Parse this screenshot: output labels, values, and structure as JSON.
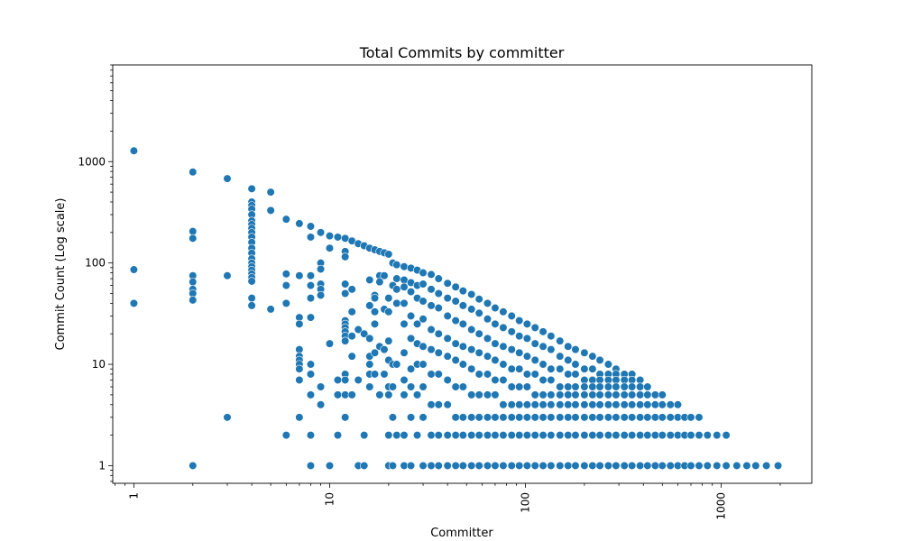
{
  "chart_data": {
    "type": "scatter",
    "title": "Total Commits by committer",
    "xlabel": "Committer",
    "ylabel": "Commit Count (Log scale)",
    "xscale": "log",
    "yscale": "log",
    "xlim": [
      0.78,
      2900
    ],
    "ylim": [
      0.67,
      9000
    ],
    "xticks": [
      1,
      10,
      100,
      1000
    ],
    "xtick_labels": [
      "1",
      "10",
      "100",
      "1000"
    ],
    "yticks": [
      1,
      10,
      100,
      1000
    ],
    "ytick_labels": [
      "1",
      "10",
      "100",
      "1000"
    ],
    "grid": false,
    "marker_color": "#1f77b4",
    "points": [
      [
        1,
        1280
      ],
      [
        1,
        86
      ],
      [
        1,
        40
      ],
      [
        2,
        790
      ],
      [
        2,
        205
      ],
      [
        2,
        175
      ],
      [
        2,
        75
      ],
      [
        2,
        65
      ],
      [
        2,
        55
      ],
      [
        2,
        50
      ],
      [
        2,
        43
      ],
      [
        2,
        1
      ],
      [
        3,
        680
      ],
      [
        3,
        75
      ],
      [
        3,
        3
      ],
      [
        4,
        540
      ],
      [
        4,
        400
      ],
      [
        4,
        370
      ],
      [
        4,
        340
      ],
      [
        4,
        300
      ],
      [
        4,
        260
      ],
      [
        4,
        240
      ],
      [
        4,
        220
      ],
      [
        4,
        200
      ],
      [
        4,
        180
      ],
      [
        4,
        160
      ],
      [
        4,
        140
      ],
      [
        4,
        125
      ],
      [
        4,
        110
      ],
      [
        4,
        100
      ],
      [
        4,
        92
      ],
      [
        4,
        85
      ],
      [
        4,
        78
      ],
      [
        4,
        72
      ],
      [
        4,
        66
      ],
      [
        4,
        45
      ],
      [
        4,
        38
      ],
      [
        5,
        500
      ],
      [
        5,
        330
      ],
      [
        5,
        35
      ],
      [
        6,
        270
      ],
      [
        6,
        78
      ],
      [
        6,
        60
      ],
      [
        6,
        40
      ],
      [
        6,
        2
      ],
      [
        7,
        245
      ],
      [
        7,
        75
      ],
      [
        7,
        29
      ],
      [
        7,
        25
      ],
      [
        7,
        14
      ],
      [
        7,
        12
      ],
      [
        7,
        11
      ],
      [
        7,
        10
      ],
      [
        7,
        9
      ],
      [
        7,
        7
      ],
      [
        7,
        3
      ],
      [
        8,
        230
      ],
      [
        8,
        180
      ],
      [
        8,
        75
      ],
      [
        8,
        60
      ],
      [
        8,
        45
      ],
      [
        8,
        29
      ],
      [
        8,
        10
      ],
      [
        8,
        8
      ],
      [
        8,
        5
      ],
      [
        8,
        2
      ],
      [
        8,
        1
      ],
      [
        9,
        200
      ],
      [
        9,
        100
      ],
      [
        9,
        87
      ],
      [
        9,
        62
      ],
      [
        9,
        55
      ],
      [
        9,
        48
      ],
      [
        9,
        6
      ],
      [
        9,
        4
      ],
      [
        10,
        185
      ],
      [
        10,
        140
      ],
      [
        10,
        16
      ],
      [
        10,
        1
      ],
      [
        11,
        180
      ],
      [
        11,
        7
      ],
      [
        11,
        5
      ],
      [
        11,
        2
      ],
      [
        12,
        175
      ],
      [
        12,
        130
      ],
      [
        12,
        115
      ],
      [
        12,
        62
      ],
      [
        12,
        50
      ],
      [
        12,
        27
      ],
      [
        12,
        25
      ],
      [
        12,
        23
      ],
      [
        12,
        21
      ],
      [
        12,
        19
      ],
      [
        12,
        17
      ],
      [
        12,
        8
      ],
      [
        12,
        7
      ],
      [
        12,
        5
      ],
      [
        12,
        3
      ],
      [
        13,
        165
      ],
      [
        13,
        55
      ],
      [
        13,
        33
      ],
      [
        13,
        19
      ],
      [
        13,
        12
      ],
      [
        13,
        5
      ],
      [
        14,
        155
      ],
      [
        14,
        22
      ],
      [
        14,
        7
      ],
      [
        14,
        1
      ],
      [
        15,
        148
      ],
      [
        15,
        20
      ],
      [
        15,
        2
      ],
      [
        15,
        1
      ],
      [
        16,
        140
      ],
      [
        16,
        68
      ],
      [
        16,
        38
      ],
      [
        16,
        18
      ],
      [
        16,
        12
      ],
      [
        16,
        10
      ],
      [
        16,
        8
      ],
      [
        16,
        6
      ],
      [
        17,
        135
      ],
      [
        17,
        48
      ],
      [
        17,
        45
      ],
      [
        17,
        33
      ],
      [
        17,
        25
      ],
      [
        17,
        13
      ],
      [
        17,
        8
      ],
      [
        18,
        130
      ],
      [
        18,
        75
      ],
      [
        18,
        65
      ],
      [
        18,
        15
      ],
      [
        18,
        5
      ],
      [
        19,
        126
      ],
      [
        19,
        75
      ],
      [
        19,
        35
      ],
      [
        19,
        14
      ],
      [
        19,
        8
      ],
      [
        20,
        122
      ],
      [
        20,
        45
      ],
      [
        20,
        33
      ],
      [
        20,
        17
      ],
      [
        20,
        11
      ],
      [
        20,
        6
      ],
      [
        20,
        5
      ],
      [
        20,
        2
      ],
      [
        20,
        1
      ],
      [
        21,
        100
      ],
      [
        21,
        60
      ],
      [
        21,
        10
      ],
      [
        21,
        6
      ],
      [
        21,
        3
      ],
      [
        21,
        1
      ],
      [
        22,
        96
      ],
      [
        22,
        70
      ],
      [
        22,
        55
      ],
      [
        22,
        40
      ],
      [
        22,
        10
      ],
      [
        22,
        2
      ],
      [
        24,
        92
      ],
      [
        24,
        68
      ],
      [
        24,
        58
      ],
      [
        24,
        40
      ],
      [
        24,
        25
      ],
      [
        24,
        13
      ],
      [
        24,
        7
      ],
      [
        24,
        5
      ],
      [
        24,
        2
      ],
      [
        24,
        1
      ],
      [
        26,
        89
      ],
      [
        26,
        64
      ],
      [
        26,
        52
      ],
      [
        26,
        30
      ],
      [
        26,
        18
      ],
      [
        26,
        9
      ],
      [
        26,
        6
      ],
      [
        26,
        3
      ],
      [
        26,
        1
      ],
      [
        28,
        85
      ],
      [
        28,
        60
      ],
      [
        28,
        45
      ],
      [
        28,
        25
      ],
      [
        28,
        16
      ],
      [
        28,
        10
      ],
      [
        28,
        5
      ],
      [
        28,
        2
      ],
      [
        30,
        80
      ],
      [
        30,
        62
      ],
      [
        30,
        42
      ],
      [
        30,
        28
      ],
      [
        30,
        15
      ],
      [
        30,
        10
      ],
      [
        30,
        6
      ],
      [
        30,
        3
      ],
      [
        30,
        1
      ],
      [
        33,
        77
      ],
      [
        33,
        55
      ],
      [
        33,
        38
      ],
      [
        33,
        22
      ],
      [
        33,
        14
      ],
      [
        33,
        8
      ],
      [
        33,
        4
      ],
      [
        33,
        2
      ],
      [
        33,
        1
      ],
      [
        36,
        70
      ],
      [
        36,
        50
      ],
      [
        36,
        36
      ],
      [
        36,
        20
      ],
      [
        36,
        13
      ],
      [
        36,
        8
      ],
      [
        36,
        4
      ],
      [
        36,
        2
      ],
      [
        36,
        1
      ],
      [
        40,
        63
      ],
      [
        40,
        45
      ],
      [
        40,
        30
      ],
      [
        40,
        18
      ],
      [
        40,
        12
      ],
      [
        40,
        7
      ],
      [
        40,
        4
      ],
      [
        40,
        2
      ],
      [
        40,
        1
      ],
      [
        44,
        58
      ],
      [
        44,
        42
      ],
      [
        44,
        27
      ],
      [
        44,
        16
      ],
      [
        44,
        11
      ],
      [
        44,
        6
      ],
      [
        44,
        3
      ],
      [
        44,
        2
      ],
      [
        44,
        1
      ],
      [
        48,
        53
      ],
      [
        48,
        38
      ],
      [
        48,
        25
      ],
      [
        48,
        15
      ],
      [
        48,
        10
      ],
      [
        48,
        6
      ],
      [
        48,
        3
      ],
      [
        48,
        2
      ],
      [
        48,
        1
      ],
      [
        53,
        49
      ],
      [
        53,
        35
      ],
      [
        53,
        22
      ],
      [
        53,
        14
      ],
      [
        53,
        9
      ],
      [
        53,
        5
      ],
      [
        53,
        3
      ],
      [
        53,
        2
      ],
      [
        53,
        1
      ],
      [
        58,
        44
      ],
      [
        58,
        32
      ],
      [
        58,
        20
      ],
      [
        58,
        13
      ],
      [
        58,
        8
      ],
      [
        58,
        5
      ],
      [
        58,
        3
      ],
      [
        58,
        2
      ],
      [
        58,
        1
      ],
      [
        64,
        40
      ],
      [
        64,
        28
      ],
      [
        64,
        18
      ],
      [
        64,
        12
      ],
      [
        64,
        8
      ],
      [
        64,
        5
      ],
      [
        64,
        3
      ],
      [
        64,
        2
      ],
      [
        64,
        1
      ],
      [
        70,
        36
      ],
      [
        70,
        25
      ],
      [
        70,
        16
      ],
      [
        70,
        11
      ],
      [
        70,
        7
      ],
      [
        70,
        5
      ],
      [
        70,
        3
      ],
      [
        70,
        2
      ],
      [
        70,
        1
      ],
      [
        77,
        33
      ],
      [
        77,
        23
      ],
      [
        77,
        15
      ],
      [
        77,
        10
      ],
      [
        77,
        7
      ],
      [
        77,
        4
      ],
      [
        77,
        3
      ],
      [
        77,
        2
      ],
      [
        77,
        1
      ],
      [
        85,
        30
      ],
      [
        85,
        21
      ],
      [
        85,
        14
      ],
      [
        85,
        9
      ],
      [
        85,
        6
      ],
      [
        85,
        4
      ],
      [
        85,
        3
      ],
      [
        85,
        2
      ],
      [
        85,
        1
      ],
      [
        93,
        27
      ],
      [
        93,
        19
      ],
      [
        93,
        13
      ],
      [
        93,
        9
      ],
      [
        93,
        6
      ],
      [
        93,
        4
      ],
      [
        93,
        3
      ],
      [
        93,
        2
      ],
      [
        93,
        1
      ],
      [
        102,
        25
      ],
      [
        102,
        18
      ],
      [
        102,
        12
      ],
      [
        102,
        8
      ],
      [
        102,
        6
      ],
      [
        102,
        4
      ],
      [
        102,
        3
      ],
      [
        102,
        2
      ],
      [
        102,
        1
      ],
      [
        112,
        23
      ],
      [
        112,
        16
      ],
      [
        112,
        11
      ],
      [
        112,
        8
      ],
      [
        112,
        5
      ],
      [
        112,
        4
      ],
      [
        112,
        3
      ],
      [
        112,
        2
      ],
      [
        112,
        1
      ],
      [
        123,
        21
      ],
      [
        123,
        15
      ],
      [
        123,
        10
      ],
      [
        123,
        7
      ],
      [
        123,
        5
      ],
      [
        123,
        4
      ],
      [
        123,
        3
      ],
      [
        123,
        2
      ],
      [
        123,
        1
      ],
      [
        135,
        19
      ],
      [
        135,
        14
      ],
      [
        135,
        9
      ],
      [
        135,
        7
      ],
      [
        135,
        5
      ],
      [
        135,
        4
      ],
      [
        135,
        3
      ],
      [
        135,
        2
      ],
      [
        135,
        1
      ],
      [
        150,
        17
      ],
      [
        150,
        12
      ],
      [
        150,
        9
      ],
      [
        150,
        6
      ],
      [
        150,
        5
      ],
      [
        150,
        4
      ],
      [
        150,
        3
      ],
      [
        150,
        2
      ],
      [
        150,
        1
      ],
      [
        165,
        15
      ],
      [
        165,
        11
      ],
      [
        165,
        8
      ],
      [
        165,
        6
      ],
      [
        165,
        5
      ],
      [
        165,
        4
      ],
      [
        165,
        3
      ],
      [
        165,
        2
      ],
      [
        165,
        1
      ],
      [
        180,
        14
      ],
      [
        180,
        10
      ],
      [
        180,
        8
      ],
      [
        180,
        6
      ],
      [
        180,
        5
      ],
      [
        180,
        4
      ],
      [
        180,
        3
      ],
      [
        180,
        2
      ],
      [
        180,
        1
      ],
      [
        200,
        13
      ],
      [
        200,
        9
      ],
      [
        200,
        7
      ],
      [
        200,
        6
      ],
      [
        200,
        5
      ],
      [
        200,
        4
      ],
      [
        200,
        3
      ],
      [
        200,
        2
      ],
      [
        200,
        1
      ],
      [
        220,
        12
      ],
      [
        220,
        9
      ],
      [
        220,
        7
      ],
      [
        220,
        6
      ],
      [
        220,
        5
      ],
      [
        220,
        4
      ],
      [
        220,
        3
      ],
      [
        220,
        2
      ],
      [
        220,
        1
      ],
      [
        240,
        11
      ],
      [
        240,
        8
      ],
      [
        240,
        7
      ],
      [
        240,
        6
      ],
      [
        240,
        5
      ],
      [
        240,
        4
      ],
      [
        240,
        3
      ],
      [
        240,
        2
      ],
      [
        240,
        1
      ],
      [
        265,
        10
      ],
      [
        265,
        8
      ],
      [
        265,
        7
      ],
      [
        265,
        6
      ],
      [
        265,
        5
      ],
      [
        265,
        4
      ],
      [
        265,
        3
      ],
      [
        265,
        2
      ],
      [
        265,
        1
      ],
      [
        290,
        9
      ],
      [
        290,
        8
      ],
      [
        290,
        7
      ],
      [
        290,
        6
      ],
      [
        290,
        5
      ],
      [
        290,
        4
      ],
      [
        290,
        3
      ],
      [
        290,
        2
      ],
      [
        290,
        1
      ],
      [
        320,
        8
      ],
      [
        320,
        7
      ],
      [
        320,
        6
      ],
      [
        320,
        5
      ],
      [
        320,
        4
      ],
      [
        320,
        3
      ],
      [
        320,
        2
      ],
      [
        320,
        1
      ],
      [
        350,
        8
      ],
      [
        350,
        7
      ],
      [
        350,
        6
      ],
      [
        350,
        5
      ],
      [
        350,
        4
      ],
      [
        350,
        3
      ],
      [
        350,
        2
      ],
      [
        350,
        1
      ],
      [
        385,
        7
      ],
      [
        385,
        6
      ],
      [
        385,
        5
      ],
      [
        385,
        4
      ],
      [
        385,
        3
      ],
      [
        385,
        2
      ],
      [
        385,
        1
      ],
      [
        420,
        6
      ],
      [
        420,
        5
      ],
      [
        420,
        4
      ],
      [
        420,
        3
      ],
      [
        420,
        2
      ],
      [
        420,
        1
      ],
      [
        460,
        5
      ],
      [
        460,
        4
      ],
      [
        460,
        3
      ],
      [
        460,
        2
      ],
      [
        460,
        1
      ],
      [
        500,
        5
      ],
      [
        500,
        4
      ],
      [
        500,
        3
      ],
      [
        500,
        2
      ],
      [
        500,
        1
      ],
      [
        550,
        4
      ],
      [
        550,
        3
      ],
      [
        550,
        2
      ],
      [
        550,
        1
      ],
      [
        600,
        4
      ],
      [
        600,
        3
      ],
      [
        600,
        2
      ],
      [
        600,
        1
      ],
      [
        650,
        3
      ],
      [
        650,
        2
      ],
      [
        650,
        1
      ],
      [
        700,
        3
      ],
      [
        700,
        2
      ],
      [
        700,
        1
      ],
      [
        770,
        3
      ],
      [
        770,
        2
      ],
      [
        770,
        1
      ],
      [
        850,
        2
      ],
      [
        850,
        1
      ],
      [
        950,
        2
      ],
      [
        950,
        1
      ],
      [
        1060,
        2
      ],
      [
        1060,
        1
      ],
      [
        1200,
        1
      ],
      [
        1350,
        1
      ],
      [
        1500,
        1
      ],
      [
        1700,
        1
      ],
      [
        1950,
        1
      ]
    ]
  }
}
